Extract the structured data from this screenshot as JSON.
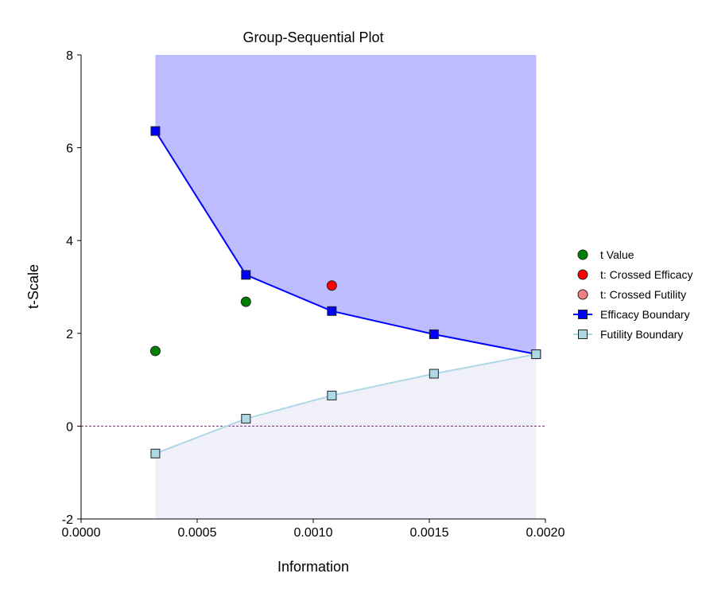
{
  "chart_data": {
    "type": "line",
    "title": "Group-Sequential Plot",
    "xlabel": "Information",
    "ylabel": "t-Scale",
    "xlim": [
      0.0,
      0.002
    ],
    "ylim": [
      -2,
      8
    ],
    "x_ticks": [
      "0.0000",
      "0.0005",
      "0.0010",
      "0.0015",
      "0.0020"
    ],
    "y_ticks": [
      "-2",
      "0",
      "2",
      "4",
      "6",
      "8"
    ],
    "reference_line": {
      "y": 0,
      "style": "dashed",
      "color": "#7a2a6a"
    },
    "regions": [
      {
        "between": "Efficacy Boundary and top",
        "color": "#bcbcff"
      },
      {
        "between": "bottom and Futility Boundary",
        "color": "#f0f0fb"
      }
    ],
    "series": [
      {
        "name": "t Value",
        "marker": "circle",
        "color": "#008000",
        "x": [
          0.00032,
          0.00071
        ],
        "y": [
          1.62,
          2.68
        ]
      },
      {
        "name": "t: Crossed Efficacy",
        "marker": "circle",
        "color": "#ff0000",
        "x": [
          0.00108
        ],
        "y": [
          3.03
        ]
      },
      {
        "name": "t: Crossed Futility",
        "marker": "circle",
        "color": "#f08080",
        "x": [],
        "y": []
      },
      {
        "name": "Efficacy Boundary",
        "marker": "square",
        "line": true,
        "color": "#0000ff",
        "x": [
          0.00032,
          0.00071,
          0.00108,
          0.00152,
          0.00196
        ],
        "y": [
          6.36,
          3.26,
          2.48,
          1.98,
          1.55
        ]
      },
      {
        "name": "Futility Boundary",
        "marker": "square",
        "line": true,
        "color": "#add8e6",
        "x": [
          0.00032,
          0.00071,
          0.00108,
          0.00152,
          0.00196
        ],
        "y": [
          -0.59,
          0.16,
          0.66,
          1.13,
          1.55
        ]
      }
    ],
    "legend": {
      "position": "right",
      "entries": [
        "t Value",
        "t: Crossed Efficacy",
        "t: Crossed Futility",
        "Efficacy Boundary",
        "Futility Boundary"
      ]
    }
  }
}
